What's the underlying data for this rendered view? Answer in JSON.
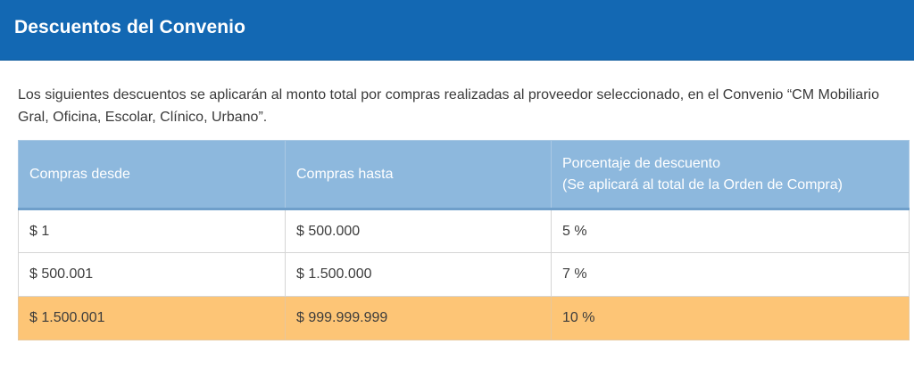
{
  "header": {
    "title": "Descuentos del Convenio"
  },
  "intro": {
    "text": "Los siguientes descuentos se aplicarán al monto total por compras realizadas al proveedor seleccionado, en el Convenio “CM Mobiliario Gral, Oficina, Escolar, Clínico, Urbano”."
  },
  "table": {
    "columns": [
      {
        "label": "Compras desde"
      },
      {
        "label": "Compras hasta"
      },
      {
        "label": "Porcentaje de descuento",
        "sublabel": "(Se aplicará al total de la Orden de Compra)"
      }
    ],
    "rows": [
      {
        "from": "$ 1",
        "to": "$ 500.000",
        "percent": "5 %",
        "highlighted": false
      },
      {
        "from": "$ 500.001",
        "to": "$ 1.500.000",
        "percent": "7 %",
        "highlighted": false
      },
      {
        "from": "$ 1.500.001",
        "to": "$ 999.999.999",
        "percent": "10 %",
        "highlighted": true
      }
    ]
  },
  "colors": {
    "header_bg": "#1368b3",
    "table_header_bg": "#8db8dd",
    "highlight_row_bg": "#fdc576"
  }
}
